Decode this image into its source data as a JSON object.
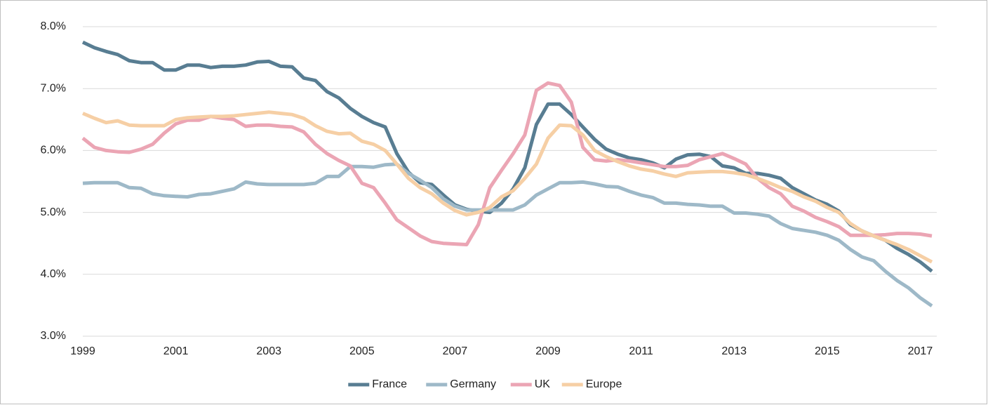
{
  "chart_data": {
    "type": "line",
    "categories": [
      "1999",
      null,
      null,
      null,
      null,
      null,
      null,
      null,
      "2001",
      null,
      null,
      null,
      null,
      null,
      null,
      null,
      "2003",
      null,
      null,
      null,
      null,
      null,
      null,
      null,
      "2005",
      null,
      null,
      null,
      null,
      null,
      null,
      null,
      "2007",
      null,
      null,
      null,
      null,
      null,
      null,
      null,
      "2009",
      null,
      null,
      null,
      null,
      null,
      null,
      null,
      "2011",
      null,
      null,
      null,
      null,
      null,
      null,
      null,
      "2013",
      null,
      null,
      null,
      null,
      null,
      null,
      null,
      "2015",
      null,
      null,
      null,
      null,
      null,
      null,
      null,
      "2017",
      null
    ],
    "series": [
      {
        "name": "France",
        "color": "#587d92",
        "values": [
          7.75,
          7.66,
          7.6,
          7.55,
          7.45,
          7.42,
          7.42,
          7.3,
          7.3,
          7.38,
          7.38,
          7.34,
          7.36,
          7.36,
          7.38,
          7.43,
          7.44,
          7.36,
          7.35,
          7.17,
          7.13,
          6.95,
          6.85,
          6.68,
          6.55,
          6.45,
          6.38,
          5.95,
          5.65,
          5.48,
          5.45,
          5.28,
          5.12,
          5.05,
          5.02,
          5.0,
          5.15,
          5.38,
          5.72,
          6.42,
          6.75,
          6.75,
          6.58,
          6.38,
          6.18,
          6.02,
          5.94,
          5.88,
          5.85,
          5.8,
          5.72,
          5.86,
          5.93,
          5.94,
          5.9,
          5.75,
          5.72,
          5.63,
          5.63,
          5.6,
          5.55,
          5.4,
          5.3,
          5.2,
          5.13,
          5.02,
          4.8,
          4.7,
          4.62,
          4.55,
          4.42,
          4.32,
          4.2,
          4.05
        ]
      },
      {
        "name": "Germany",
        "color": "#9eb9c8",
        "values": [
          5.47,
          5.48,
          5.48,
          5.48,
          5.4,
          5.39,
          5.3,
          5.27,
          5.26,
          5.25,
          5.29,
          5.3,
          5.34,
          5.38,
          5.49,
          5.46,
          5.45,
          5.45,
          5.45,
          5.45,
          5.47,
          5.58,
          5.58,
          5.74,
          5.74,
          5.73,
          5.77,
          5.78,
          5.63,
          5.52,
          5.4,
          5.22,
          5.1,
          5.04,
          5.04,
          5.04,
          5.04,
          5.04,
          5.12,
          5.28,
          5.38,
          5.48,
          5.48,
          5.49,
          5.46,
          5.42,
          5.41,
          5.34,
          5.28,
          5.24,
          5.15,
          5.15,
          5.13,
          5.12,
          5.1,
          5.1,
          4.99,
          4.99,
          4.97,
          4.94,
          4.82,
          4.74,
          4.71,
          4.68,
          4.63,
          4.55,
          4.4,
          4.28,
          4.22,
          4.05,
          3.9,
          3.78,
          3.62,
          3.49
        ]
      },
      {
        "name": "UK",
        "color": "#eba5b4",
        "values": [
          6.2,
          6.05,
          6.0,
          5.98,
          5.97,
          6.02,
          6.1,
          6.28,
          6.43,
          6.49,
          6.49,
          6.55,
          6.52,
          6.5,
          6.39,
          6.41,
          6.41,
          6.39,
          6.38,
          6.3,
          6.1,
          5.95,
          5.84,
          5.75,
          5.47,
          5.4,
          5.15,
          4.88,
          4.75,
          4.62,
          4.53,
          4.5,
          4.49,
          4.48,
          4.8,
          5.4,
          5.68,
          5.95,
          6.25,
          6.97,
          7.09,
          7.05,
          6.78,
          6.05,
          5.85,
          5.83,
          5.85,
          5.83,
          5.8,
          5.77,
          5.74,
          5.74,
          5.76,
          5.85,
          5.9,
          5.95,
          5.87,
          5.78,
          5.55,
          5.4,
          5.3,
          5.1,
          5.02,
          4.92,
          4.85,
          4.77,
          4.63,
          4.63,
          4.63,
          4.64,
          4.66,
          4.66,
          4.65,
          4.62
        ]
      },
      {
        "name": "Europe",
        "color": "#f6cfa5",
        "values": [
          6.6,
          6.52,
          6.45,
          6.48,
          6.41,
          6.4,
          6.4,
          6.4,
          6.5,
          6.53,
          6.54,
          6.55,
          6.55,
          6.56,
          6.58,
          6.6,
          6.62,
          6.6,
          6.58,
          6.52,
          6.4,
          6.31,
          6.27,
          6.28,
          6.15,
          6.1,
          6.0,
          5.78,
          5.55,
          5.4,
          5.3,
          5.15,
          5.03,
          4.96,
          5.0,
          5.08,
          5.25,
          5.35,
          5.55,
          5.78,
          6.2,
          6.41,
          6.4,
          6.25,
          6.0,
          5.9,
          5.82,
          5.75,
          5.7,
          5.67,
          5.62,
          5.58,
          5.64,
          5.65,
          5.66,
          5.66,
          5.64,
          5.61,
          5.55,
          5.48,
          5.4,
          5.34,
          5.25,
          5.18,
          5.08,
          5.0,
          4.82,
          4.7,
          4.62,
          4.55,
          4.48,
          4.4,
          4.3,
          4.2
        ]
      }
    ],
    "ylim": [
      3,
      8
    ],
    "yticks": [
      {
        "value": 3,
        "label": "3.0%"
      },
      {
        "value": 4,
        "label": "4.0%"
      },
      {
        "value": 5,
        "label": "5.0%"
      },
      {
        "value": 6,
        "label": "6.0%"
      },
      {
        "value": 7,
        "label": "7.0%"
      },
      {
        "value": 8,
        "label": "8.0%"
      }
    ],
    "grid": true,
    "legend": "bottom"
  }
}
